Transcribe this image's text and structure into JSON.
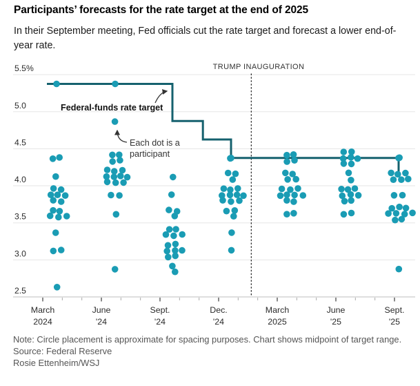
{
  "header": {
    "title": "Participants’ forecasts for the rate target at the end of 2025",
    "subtitle": "In their September meeting, Fed officials cut the rate target and forecast a lower end-of-year rate."
  },
  "chart_data": {
    "type": "scatter",
    "title": "Participants’ forecasts for the rate target at the end of 2025",
    "unit": "percent",
    "participants_per_meeting": 19,
    "y_axis": {
      "range": [
        2.5,
        5.5
      ],
      "ticks": [
        {
          "label": "5.5%",
          "value": 5.5
        },
        {
          "label": "5.0",
          "value": 5.0
        },
        {
          "label": "4.5",
          "value": 4.5
        },
        {
          "label": "4.0",
          "value": 4.0
        },
        {
          "label": "3.5",
          "value": 3.5
        },
        {
          "label": "3.0",
          "value": 3.0
        },
        {
          "label": "2.5",
          "value": 2.5
        }
      ]
    },
    "meetings": [
      {
        "label": "March 2024",
        "month": "March",
        "year": "2024",
        "groups": [
          {
            "midpoint": 4.375,
            "count": 2
          },
          {
            "midpoint": 4.125,
            "count": 1
          },
          {
            "midpoint": 3.875,
            "count": 7
          },
          {
            "midpoint": 3.625,
            "count": 5
          },
          {
            "midpoint": 3.375,
            "count": 1
          },
          {
            "midpoint": 3.125,
            "count": 2
          },
          {
            "midpoint": 2.625,
            "count": 1
          }
        ]
      },
      {
        "label": "June 2024",
        "month": "June",
        "year": "'24",
        "groups": [
          {
            "midpoint": 4.875,
            "count": 1
          },
          {
            "midpoint": 4.375,
            "count": 4
          },
          {
            "midpoint": 4.125,
            "count": 10
          },
          {
            "midpoint": 3.875,
            "count": 2
          },
          {
            "midpoint": 3.625,
            "count": 1
          },
          {
            "midpoint": 2.875,
            "count": 1
          }
        ]
      },
      {
        "label": "September 2024",
        "month": "Sept.",
        "year": "'24",
        "groups": [
          {
            "midpoint": 4.125,
            "count": 1
          },
          {
            "midpoint": 3.875,
            "count": 1
          },
          {
            "midpoint": 3.625,
            "count": 3
          },
          {
            "midpoint": 3.375,
            "count": 5
          },
          {
            "midpoint": 3.125,
            "count": 7
          },
          {
            "midpoint": 2.875,
            "count": 2,
            "rows": [
              1,
              1
            ]
          }
        ]
      },
      {
        "label": "December 2024",
        "month": "Dec.",
        "year": "'24",
        "groups": [
          {
            "midpoint": 4.375,
            "count": 1
          },
          {
            "midpoint": 4.125,
            "count": 3
          },
          {
            "midpoint": 3.875,
            "count": 10
          },
          {
            "midpoint": 3.625,
            "count": 3
          },
          {
            "midpoint": 3.375,
            "count": 1
          },
          {
            "midpoint": 3.125,
            "count": 1
          }
        ]
      },
      {
        "label": "March 2025",
        "month": "March",
        "year": "2025",
        "groups": [
          {
            "midpoint": 4.375,
            "count": 4
          },
          {
            "midpoint": 4.125,
            "count": 4
          },
          {
            "midpoint": 3.875,
            "count": 9
          },
          {
            "midpoint": 3.625,
            "count": 2
          }
        ]
      },
      {
        "label": "June 2025",
        "month": "June",
        "year": "'25",
        "groups": [
          {
            "midpoint": 4.375,
            "count": 7
          },
          {
            "midpoint": 4.125,
            "count": 2,
            "rows": [
              1,
              1
            ]
          },
          {
            "midpoint": 3.875,
            "count": 8
          },
          {
            "midpoint": 3.625,
            "count": 2
          }
        ]
      },
      {
        "label": "September 2025",
        "month": "Sept.",
        "year": "'25",
        "groups": [
          {
            "midpoint": 4.375,
            "count": 1
          },
          {
            "midpoint": 4.125,
            "count": 6
          },
          {
            "midpoint": 3.875,
            "count": 2
          },
          {
            "midpoint": 3.625,
            "count": 9
          },
          {
            "midpoint": 2.875,
            "count": 1
          }
        ]
      }
    ],
    "target_line": {
      "label": "Federal-funds rate target",
      "steps": [
        {
          "value": 5.375,
          "from": -0.165,
          "to": 2
        },
        {
          "value": 4.875,
          "from": 2,
          "to": 2.52
        },
        {
          "value": 4.625,
          "from": 2.52,
          "to": 3
        },
        {
          "value": 4.375,
          "from": 3,
          "to": 6
        }
      ],
      "end_value": 4.125,
      "markers": [
        {
          "meeting": 0,
          "value": 5.375
        },
        {
          "meeting": 1,
          "value": 5.375
        },
        {
          "meeting": 3,
          "value": 4.375
        },
        {
          "meeting": 6,
          "value": 4.375
        }
      ]
    },
    "event_marker": {
      "label": "TRUMP INAUGURATION",
      "x_unit": 3.345
    },
    "annotations": {
      "dot_note_line1": "Each dot is a",
      "dot_note_line2": "participant"
    },
    "colors": {
      "dot": "#1a9cb4",
      "line": "#15616e",
      "grid": "#e5e5e5",
      "axis": "#bdbdbd"
    },
    "legend_position": "none",
    "grid": "horizontal"
  },
  "footer": {
    "note": "Note: Circle placement is approximate for spacing purposes. Chart shows midpoint of target range.",
    "source": "Source: Federal Reserve",
    "credit": "Rosie Ettenheim/WSJ"
  }
}
